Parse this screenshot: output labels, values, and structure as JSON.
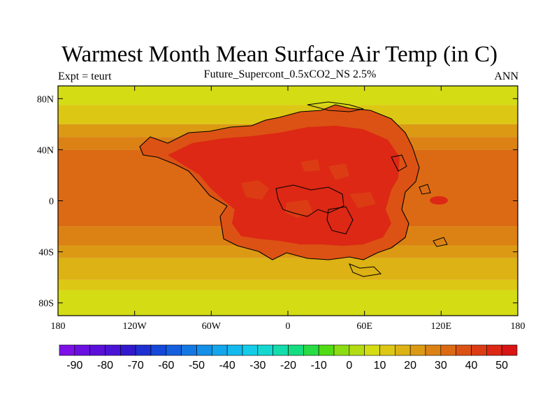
{
  "title": "Warmest Month Mean Surface Air Temp (in C)",
  "subtitle": "Future_Supercont_0.5xCO2_NS 2.5%",
  "expt_label": "Expt = teurt",
  "season_label": "ANN",
  "chart_data": {
    "type": "heatmap",
    "title": "Warmest Month Mean Surface Air Temp (in C)",
    "subtitle": "Future_Supercont_0.5xCO2_NS 2.5%",
    "xlim": [
      -180,
      180
    ],
    "ylim": [
      -90,
      90
    ],
    "x_ticks": [
      {
        "value": -180,
        "label": "180"
      },
      {
        "value": -120,
        "label": "120W"
      },
      {
        "value": -60,
        "label": "60W"
      },
      {
        "value": 0,
        "label": "0"
      },
      {
        "value": 60,
        "label": "60E"
      },
      {
        "value": 120,
        "label": "120E"
      },
      {
        "value": 180,
        "label": "180"
      }
    ],
    "y_ticks": [
      {
        "value": 80,
        "label": "80N"
      },
      {
        "value": 40,
        "label": "40N"
      },
      {
        "value": 0,
        "label": "0"
      },
      {
        "value": -40,
        "label": "40S"
      },
      {
        "value": -80,
        "label": "80S"
      }
    ],
    "zonal_bands": [
      {
        "lat_range": [
          75,
          90
        ],
        "value": 5
      },
      {
        "lat_range": [
          60,
          75
        ],
        "value": 10
      },
      {
        "lat_range": [
          50,
          60
        ],
        "value": 20
      },
      {
        "lat_range": [
          40,
          50
        ],
        "value": 25
      },
      {
        "lat_range": [
          -20,
          40
        ],
        "value": 30
      },
      {
        "lat_range": [
          -35,
          -20
        ],
        "value": 25
      },
      {
        "lat_range": [
          -45,
          -35
        ],
        "value": 20
      },
      {
        "lat_range": [
          -62,
          -45
        ],
        "value": 15
      },
      {
        "lat_range": [
          -70,
          -62
        ],
        "value": 10
      },
      {
        "lat_range": [
          -90,
          -70
        ],
        "value": 5
      }
    ],
    "continent_values": {
      "edge": 35,
      "interior": 45,
      "patches": 40
    },
    "colorbar": {
      "min": -95,
      "max": 55,
      "step": 5,
      "colors": [
        "#7d10e6",
        "#6a10e0",
        "#5a10da",
        "#4a14d6",
        "#3218cc",
        "#1e30d2",
        "#1448d8",
        "#1460de",
        "#1478e4",
        "#1490e8",
        "#14a6ec",
        "#14baee",
        "#14cce8",
        "#14d8d0",
        "#14dcaa",
        "#14dc80",
        "#28dc46",
        "#50dc14",
        "#8cdc14",
        "#b4dc14",
        "#d4dc14",
        "#dcc814",
        "#dcb214",
        "#dc9a14",
        "#dc8214",
        "#dc6a14",
        "#dc5214",
        "#dc3c14",
        "#dc2814",
        "#d81414"
      ],
      "labels": [
        "-90",
        "-80",
        "-70",
        "-60",
        "-50",
        "-40",
        "-30",
        "-20",
        "-10",
        "0",
        "10",
        "20",
        "30",
        "40",
        "50"
      ],
      "label_values": [
        -90,
        -80,
        -70,
        -60,
        -50,
        -40,
        -30,
        -20,
        -10,
        0,
        10,
        20,
        30,
        40,
        50
      ]
    }
  }
}
